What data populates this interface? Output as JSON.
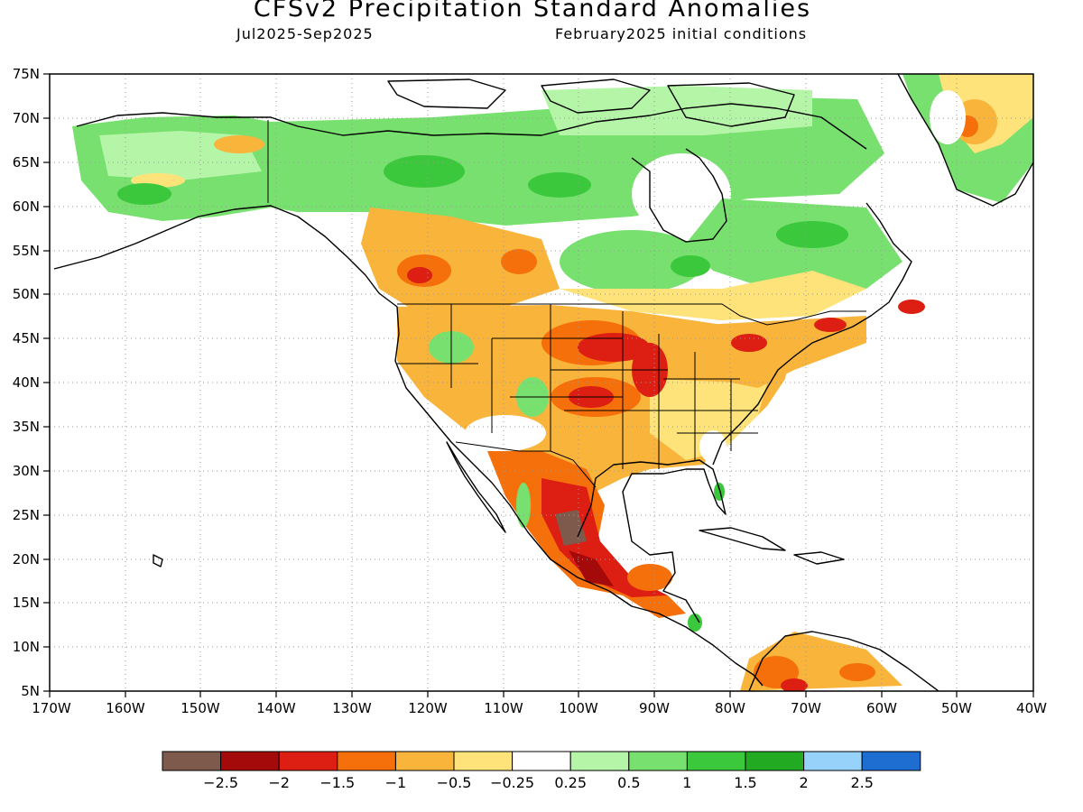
{
  "header": {
    "title": "CFSv2 Precipitation Standard Anomalies",
    "period": "Jul2025-Sep2025",
    "init": "February2025 initial conditions"
  },
  "axes": {
    "lat_labels": [
      "75N",
      "70N",
      "65N",
      "60N",
      "55N",
      "50N",
      "45N",
      "40N",
      "35N",
      "30N",
      "25N",
      "20N",
      "15N",
      "10N",
      "5N"
    ],
    "lon_labels": [
      "170W",
      "160W",
      "150W",
      "140W",
      "130W",
      "120W",
      "110W",
      "100W",
      "90W",
      "80W",
      "70W",
      "60W",
      "50W",
      "40W"
    ]
  },
  "colorbar": {
    "colors": [
      "#7d5a4c",
      "#a50a0a",
      "#dd1e12",
      "#f5700a",
      "#f9b43c",
      "#fde37a",
      "#ffffff",
      "#b5f5a8",
      "#78e06e",
      "#3cc83c",
      "#23aa23",
      "#96d2fa",
      "#1e6ed2"
    ],
    "labels": [
      "−2.5",
      "−2",
      "−1.5",
      "−1",
      "−0.5",
      "−0.25",
      "0.25",
      "0.5",
      "1",
      "1.5",
      "2",
      "2.5"
    ]
  },
  "chart_data": {
    "type": "heatmap",
    "title": "CFSv2 Precipitation Standard Anomalies",
    "subtitle": "Jul2025-Sep2025 / February2025 initial conditions",
    "x_range": [
      "170W",
      "40W"
    ],
    "y_range": [
      "5N",
      "75N"
    ],
    "grid": true,
    "legend": "bottom",
    "color_scale_bins": [
      -2.5,
      -2,
      -1.5,
      -1,
      -0.5,
      -0.25,
      0.25,
      0.5,
      1,
      1.5,
      2,
      2.5
    ]
  }
}
